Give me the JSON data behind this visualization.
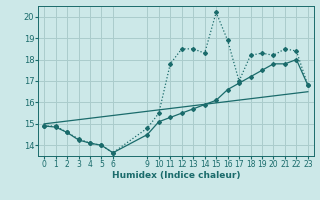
{
  "xlabel": "Humidex (Indice chaleur)",
  "background_color": "#cce8e8",
  "grid_color": "#aacccc",
  "line_color": "#1a6b6b",
  "ylim": [
    13.5,
    20.5
  ],
  "xlim": [
    -0.5,
    23.5
  ],
  "yticks": [
    14,
    15,
    16,
    17,
    18,
    19,
    20
  ],
  "xticks": [
    0,
    1,
    2,
    3,
    4,
    5,
    6,
    9,
    10,
    11,
    12,
    13,
    14,
    15,
    16,
    17,
    18,
    19,
    20,
    21,
    22,
    23
  ],
  "line1_x": [
    0,
    1,
    2,
    3,
    4,
    5,
    6,
    9,
    10,
    11,
    12,
    13,
    14,
    15,
    16,
    17,
    18,
    19,
    20,
    21,
    22,
    23
  ],
  "line1_y": [
    14.9,
    14.9,
    14.6,
    14.3,
    14.1,
    14.0,
    13.65,
    14.8,
    15.5,
    17.8,
    18.5,
    18.5,
    18.3,
    20.2,
    18.9,
    17.0,
    18.2,
    18.3,
    18.2,
    18.5,
    18.4,
    16.8
  ],
  "line2_x": [
    0,
    1,
    2,
    3,
    4,
    5,
    6,
    9,
    10,
    11,
    12,
    13,
    14,
    15,
    16,
    17,
    18,
    19,
    20,
    21,
    22,
    23
  ],
  "line2_y": [
    14.9,
    14.85,
    14.6,
    14.25,
    14.1,
    14.0,
    13.65,
    14.5,
    15.1,
    15.3,
    15.5,
    15.7,
    15.9,
    16.1,
    16.6,
    16.9,
    17.2,
    17.5,
    17.8,
    17.8,
    18.0,
    16.8
  ],
  "line3_x": [
    0,
    23
  ],
  "line3_y": [
    15.0,
    16.5
  ]
}
